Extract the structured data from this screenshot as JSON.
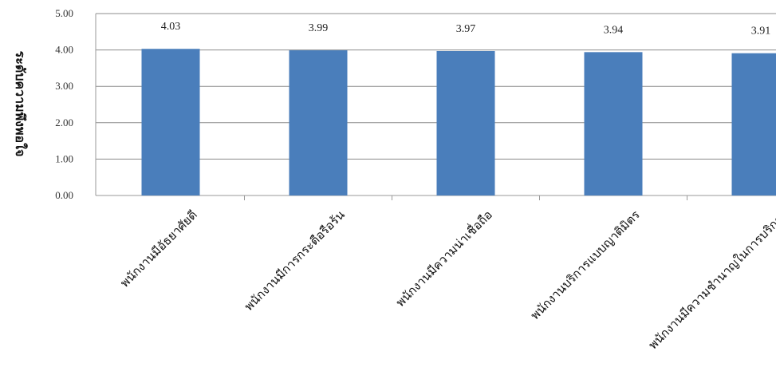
{
  "chart_data": {
    "type": "bar",
    "title": "",
    "xlabel": "",
    "ylabel": "ระดับความพึงพอใจ",
    "ylim": [
      0,
      5
    ],
    "yticks": [
      "0.00",
      "1.00",
      "2.00",
      "3.00",
      "4.00",
      "5.00"
    ],
    "grid": true,
    "bar_color": "#4a7ebb",
    "categories": [
      "พนักงานมีอัธยาศัยดี",
      "พนักงานมีการกระตือรือร้น",
      "พนักงานมีความน่าเชื่อถือ",
      "พนักงานบริการแบบญาติมิตร",
      "พนักงานมีความชำนาญในการบริการ"
    ],
    "values": [
      4.03,
      3.99,
      3.97,
      3.94,
      3.91
    ],
    "value_labels": [
      "4.03",
      "3.99",
      "3.97",
      "3.94",
      "3.91"
    ]
  }
}
